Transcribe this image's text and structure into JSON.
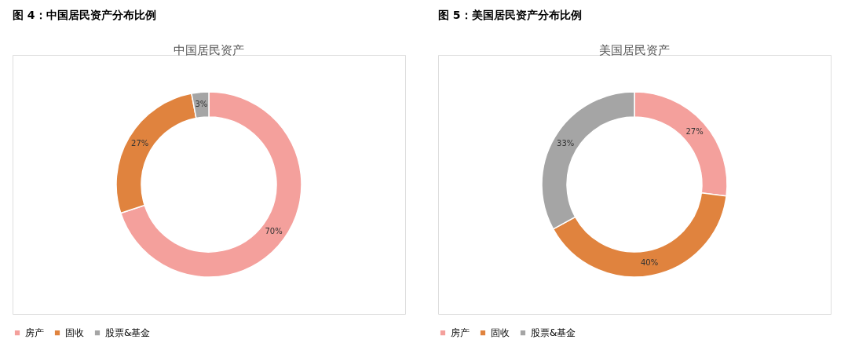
{
  "chart_data": [
    {
      "type": "donut",
      "title": "图 4：中国居民资产分布比例",
      "subtitle": "中国居民资产",
      "categories": [
        "房产",
        "固收",
        "股票&基金"
      ],
      "values": [
        70,
        27,
        3
      ],
      "colors": [
        "#f4a09c",
        "#e0833e",
        "#a5a5a5"
      ],
      "value_labels": [
        "70%",
        "27%",
        "3%"
      ],
      "legend": "bottom"
    },
    {
      "type": "donut",
      "title": "图 5：美国居民资产分布比例",
      "subtitle": "美国居民资产",
      "categories": [
        "房产",
        "固收",
        "股票&基金"
      ],
      "values": [
        27,
        40,
        33
      ],
      "colors": [
        "#f4a09c",
        "#e0833e",
        "#a5a5a5"
      ],
      "value_labels": [
        "27%",
        "40%",
        "33%"
      ],
      "legend": "bottom"
    }
  ]
}
